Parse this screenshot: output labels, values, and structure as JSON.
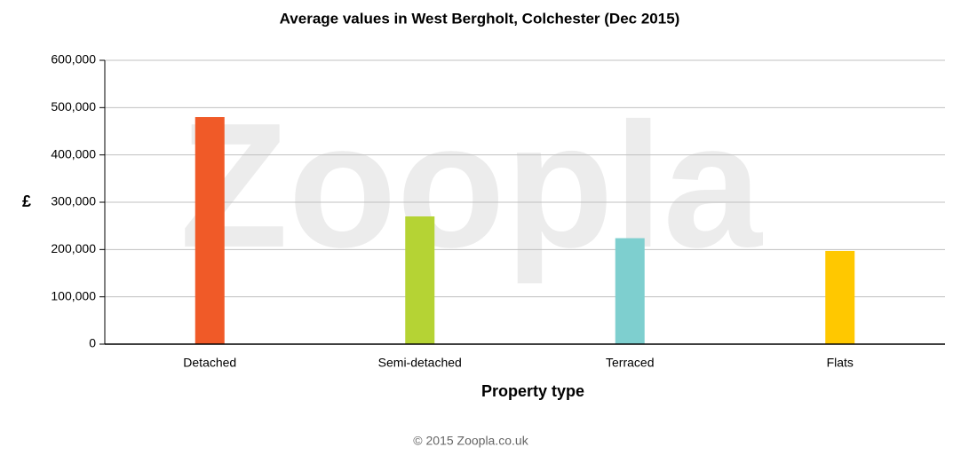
{
  "chart_data": {
    "type": "bar",
    "title": "Average values in West Bergholt, Colchester (Dec 2015)",
    "watermark": "Zoopla",
    "footer": "© 2015 Zoopla.co.uk",
    "y_label": "£",
    "x_label": "Property type",
    "categories": [
      "Detached",
      "Semi-detached",
      "Terraced",
      "Flats"
    ],
    "values": [
      480000,
      270000,
      224000,
      197000
    ],
    "colors": [
      "#f05a28",
      "#b5d334",
      "#7ecfcf",
      "#ffc800"
    ],
    "ylim": [
      0,
      600000
    ],
    "yticks": [
      0,
      {
        "value": 100000,
        "label": "100,000"
      },
      {
        "value": 200000,
        "label": "200,000"
      },
      {
        "value": 300000,
        "label": "300,000"
      },
      {
        "value": 400000,
        "label": "400,000"
      },
      {
        "value": 500000,
        "label": "500,000"
      },
      {
        "value": 600000,
        "label": "600,000"
      }
    ],
    "grid": true
  }
}
